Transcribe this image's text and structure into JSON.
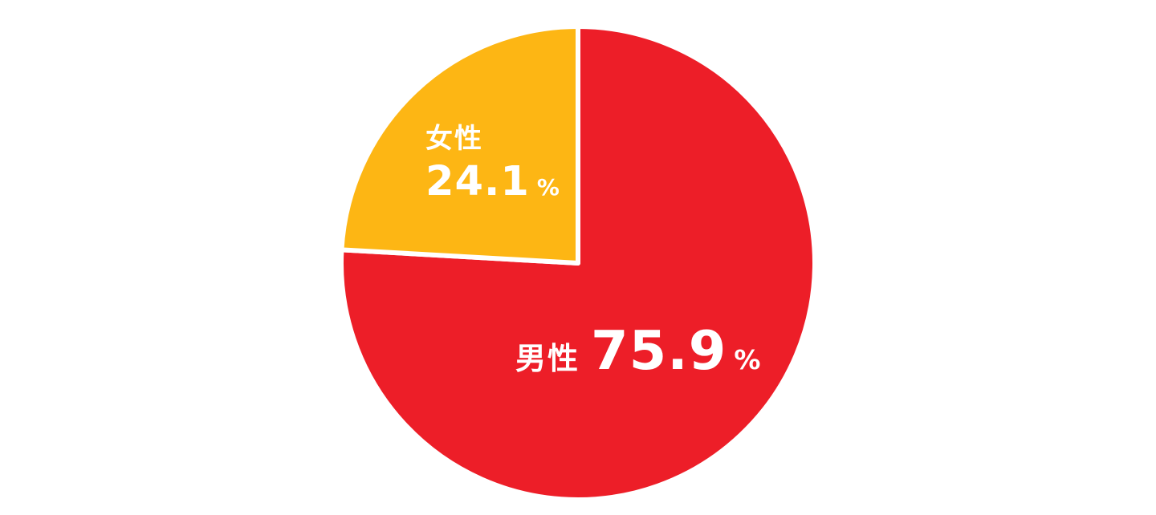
{
  "chart_data": {
    "type": "pie",
    "title": "",
    "unit": "%",
    "start_angle_deg": 0,
    "direction": "clockwise",
    "divider_color": "#FFFFFF",
    "background_color": "#FFFFFF",
    "label_color": "#FFFFFF",
    "series": [
      {
        "key": "male",
        "name": "男性",
        "value": 75.9,
        "color": "#ED1E28"
      },
      {
        "key": "female",
        "name": "女性",
        "value": 24.1,
        "color": "#FDB614"
      }
    ]
  }
}
